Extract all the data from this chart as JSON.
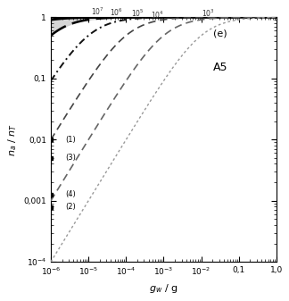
{
  "title_label": "(e)",
  "compound_label": "A5",
  "xlabel": "g$_w$ / g",
  "ylabel": "n$_a$ / n$_T$",
  "xlim_log": [
    -6,
    0
  ],
  "ylim_log": [
    -4,
    0
  ],
  "background_color": "#ffffff",
  "shading_color": "#cccccc",
  "line_configs": [
    {
      "H_label": "10",
      "log_K": 1,
      "style": "solid",
      "color": "#000000",
      "lw": 2.0,
      "shade_upper": true
    },
    {
      "H_label": "10",
      "log_K": 0,
      "style": "dashed",
      "color": "#000000",
      "lw": 1.8,
      "shade_lower": true
    },
    {
      "H_label": "10",
      "log_K": -1,
      "style": "dashdot",
      "color": "#000000",
      "lw": 1.4
    },
    {
      "H_label": "10",
      "log_K": -2,
      "style": "dashed",
      "color": "#555555",
      "lw": 1.2
    },
    {
      "H_label": "10",
      "log_K": -3,
      "style": "dotted",
      "color": "#555555",
      "lw": 1.2
    },
    {
      "H_label": "10",
      "log_K": -4,
      "style": "dotted",
      "color": "#999999",
      "lw": 1.0
    }
  ],
  "markers": [
    {
      "label": "1",
      "log_gw": -6,
      "log_na": -2.0,
      "circled": true
    },
    {
      "label": "3",
      "log_gw": -6,
      "log_na": -2.3,
      "circled": true
    },
    {
      "label": "4",
      "log_gw": -6,
      "log_na": -2.9,
      "circled": true
    },
    {
      "label": "2",
      "log_gw": -6,
      "log_na": -3.1,
      "circled": true
    }
  ]
}
